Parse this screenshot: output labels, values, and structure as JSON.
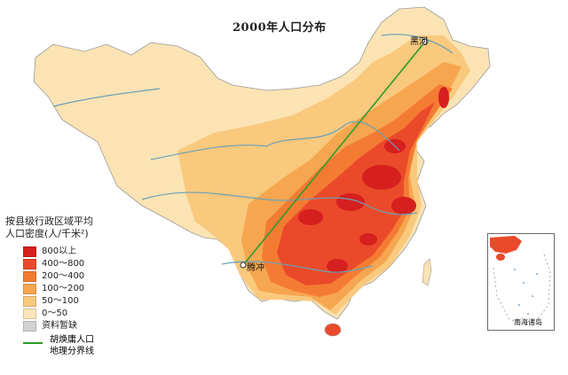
{
  "map": {
    "title": "2000年人口分布",
    "legend_title_line1": "按县级行政区域平均",
    "legend_title_line2": "人口密度(人/千米²)",
    "legend": [
      {
        "label": "800以上",
        "color": "#d61f1f"
      },
      {
        "label": "400～800",
        "color": "#ea4a2a"
      },
      {
        "label": "200～400",
        "color": "#f47c32"
      },
      {
        "label": "100～200",
        "color": "#f7a650"
      },
      {
        "label": "50～100",
        "color": "#f9c97d"
      },
      {
        "label": "0～50",
        "color": "#fbe6b9"
      },
      {
        "label": "资料暂缺",
        "color": "#d2d2d2"
      }
    ],
    "line_legend_line1": "胡焕庸人口",
    "line_legend_line2": "地理分界线",
    "line_color": "#2e9a2a",
    "places": {
      "heihe": "黑河",
      "tengchong": "腾冲"
    },
    "inset_label": "南海诸岛"
  }
}
